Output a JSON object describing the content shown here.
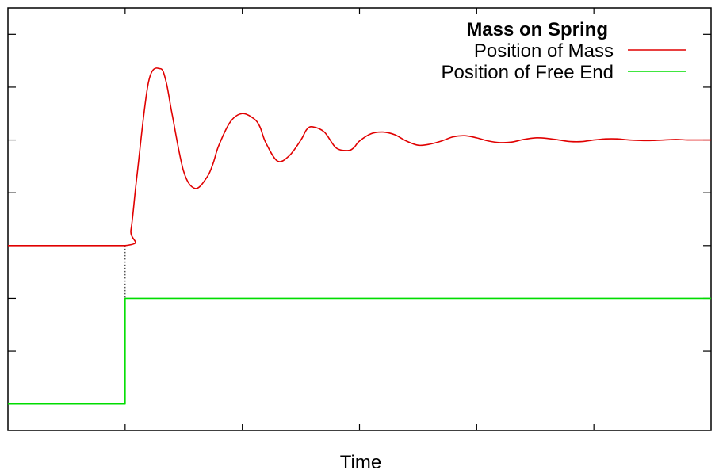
{
  "chart_data": {
    "type": "line",
    "title": "",
    "xlabel": "Time",
    "ylabel": "",
    "xlim": [
      -1,
      5
    ],
    "ylim": [
      -3.5,
      4.5
    ],
    "x_ticks": [
      0,
      1,
      2,
      3,
      4
    ],
    "y_ticks": [
      -2,
      -1,
      0,
      1,
      2,
      3,
      4
    ],
    "show_tick_labels": false,
    "grid": false,
    "legend": {
      "title": "Mass on Spring",
      "position": "top-right"
    },
    "series": [
      {
        "name": "Position of Mass",
        "color": "#e00000",
        "x": [
          -1,
          0,
          0.05,
          0.1,
          0.2,
          0.3,
          0.35,
          0.4,
          0.5,
          0.6,
          0.7,
          0.75,
          0.8,
          0.9,
          1.0,
          1.1,
          1.15,
          1.2,
          1.3,
          1.4,
          1.5,
          1.55,
          1.6,
          1.7,
          1.8,
          1.9,
          1.95,
          2.0,
          2.1,
          2.2,
          2.3,
          2.4,
          2.5,
          2.6,
          2.7,
          2.8,
          2.9,
          3.0,
          3.1,
          3.2,
          3.3,
          3.4,
          3.5,
          3.6,
          3.7,
          3.8,
          3.9,
          4.0,
          4.1,
          4.2,
          4.3,
          4.4,
          4.5,
          4.6,
          4.7,
          4.8,
          4.9,
          5.0
        ],
        "values": [
          0,
          0,
          0.3,
          1.3,
          3.1,
          3.35,
          3.1,
          2.5,
          1.4,
          1.08,
          1.3,
          1.55,
          1.9,
          2.35,
          2.5,
          2.4,
          2.25,
          1.95,
          1.6,
          1.7,
          2.0,
          2.2,
          2.25,
          2.15,
          1.85,
          1.8,
          1.85,
          1.98,
          2.12,
          2.15,
          2.1,
          1.98,
          1.9,
          1.92,
          1.98,
          2.06,
          2.08,
          2.04,
          1.98,
          1.95,
          1.96,
          2.01,
          2.04,
          2.03,
          2.0,
          1.97,
          1.97,
          2.0,
          2.02,
          2.02,
          2.0,
          1.99,
          1.99,
          2.0,
          2.01,
          2.0,
          2.0,
          2.0
        ]
      },
      {
        "name": "Position of Free End",
        "color": "#00dd00",
        "x": [
          -1,
          0,
          0,
          5
        ],
        "values": [
          -3,
          -3,
          -1,
          -1
        ]
      }
    ],
    "annotations": [
      {
        "type": "dotted-vertical",
        "x": 0,
        "y_from": 0,
        "y_to": -1,
        "color": "#000000"
      }
    ]
  }
}
